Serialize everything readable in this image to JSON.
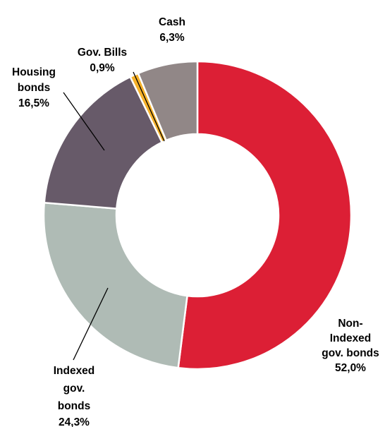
{
  "chart_data": {
    "type": "pie",
    "variant": "donut",
    "title": "",
    "legend": "none",
    "slices": [
      {
        "key": "non_indexed",
        "label": [
          "Non-",
          "Indexed",
          "gov. bonds"
        ],
        "value_text": "52,0%",
        "value": 52.0,
        "color": "#DC1F35"
      },
      {
        "key": "indexed",
        "label": [
          "Indexed",
          "gov.",
          "bonds"
        ],
        "value_text": "24,3%",
        "value": 24.3,
        "color": "#AFBBB5"
      },
      {
        "key": "housing",
        "label": [
          "Housing",
          "bonds"
        ],
        "value_text": "16,5%",
        "value": 16.5,
        "color": "#675A69"
      },
      {
        "key": "bills",
        "label": [
          "Gov. Bills"
        ],
        "value_text": "0,9%",
        "value": 0.9,
        "color": "#F5B12A"
      },
      {
        "key": "cash",
        "label": [
          "Cash"
        ],
        "value_text": "6,3%",
        "value": 6.3,
        "color": "#918787"
      }
    ]
  }
}
